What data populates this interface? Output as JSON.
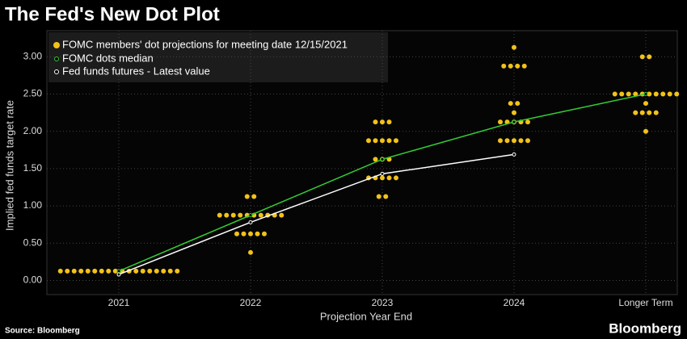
{
  "chart_data": {
    "type": "dot-plot",
    "title": "The Fed's New Dot Plot",
    "x_label": "Projection Year End",
    "y_label": "Implied fed funds target rate",
    "source": "Source: Bloomberg",
    "brand": "Bloomberg",
    "categories": [
      "2021",
      "2022",
      "2023",
      "2024",
      "Longer Term"
    ],
    "ylim": [
      -0.19,
      3.35
    ],
    "yticks": [
      {
        "value": 0,
        "label": "0.00"
      },
      {
        "value": 0.5,
        "label": "0.50"
      },
      {
        "value": 1,
        "label": "1.00"
      },
      {
        "value": 1.5,
        "label": "1.50"
      },
      {
        "value": 2,
        "label": "2.00"
      },
      {
        "value": 2.5,
        "label": "2.50"
      },
      {
        "value": 3,
        "label": "3.00"
      }
    ],
    "grid": true,
    "dots": {
      "name": "FOMC members' dot projections for meeting date 12/15/2021",
      "color": "#f2c218",
      "levels": [
        [
          {
            "rate": 0.125,
            "count": 18
          }
        ],
        [
          {
            "rate": 0.375,
            "count": 1
          },
          {
            "rate": 0.625,
            "count": 5
          },
          {
            "rate": 0.875,
            "count": 10
          },
          {
            "rate": 1.125,
            "count": 2
          }
        ],
        [
          {
            "rate": 1.125,
            "count": 2
          },
          {
            "rate": 1.375,
            "count": 5
          },
          {
            "rate": 1.625,
            "count": 3
          },
          {
            "rate": 1.875,
            "count": 5
          },
          {
            "rate": 2.125,
            "count": 3
          }
        ],
        [
          {
            "rate": 1.875,
            "count": 5
          },
          {
            "rate": 2.125,
            "count": 5
          },
          {
            "rate": 2.25,
            "count": 1
          },
          {
            "rate": 2.375,
            "count": 2
          },
          {
            "rate": 2.875,
            "count": 4
          },
          {
            "rate": 3.125,
            "count": 1
          }
        ],
        [
          {
            "rate": 2.0,
            "count": 1
          },
          {
            "rate": 2.25,
            "count": 4
          },
          {
            "rate": 2.375,
            "count": 1
          },
          {
            "rate": 2.5,
            "count": 10
          },
          {
            "rate": 3.0,
            "count": 2
          }
        ]
      ]
    },
    "series": [
      {
        "name": "FOMC dots median",
        "color": "#33cc33",
        "values": [
          0.125,
          0.875,
          1.625,
          2.125,
          2.5
        ]
      },
      {
        "name": "Fed funds futures - Latest value",
        "color": "#ffffff",
        "values": [
          0.08,
          0.78,
          1.43,
          1.69,
          null
        ]
      }
    ]
  }
}
